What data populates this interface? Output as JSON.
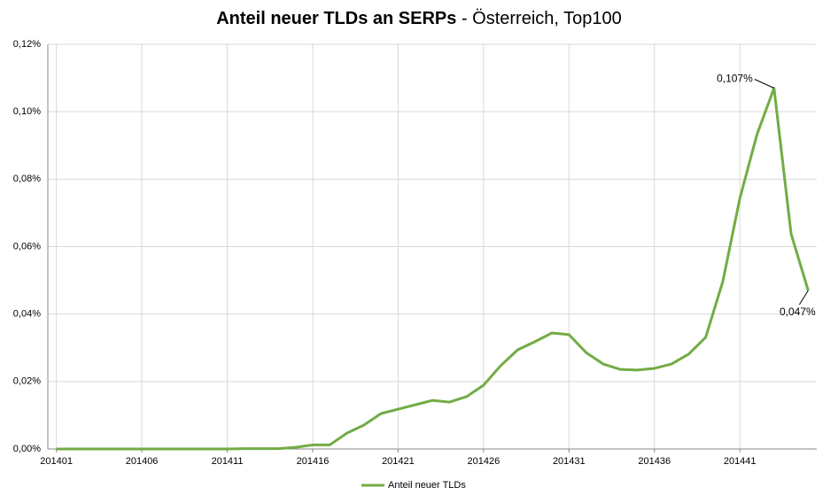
{
  "chart_data": {
    "type": "line",
    "title": "Anteil neuer TLDs an SERPs",
    "subtitle": "- Österreich, Top100",
    "categories": [
      "201401",
      null,
      null,
      null,
      null,
      "201406",
      null,
      null,
      null,
      null,
      "201411",
      null,
      null,
      null,
      null,
      "201416",
      null,
      null,
      null,
      null,
      "201421",
      null,
      null,
      null,
      null,
      "201426",
      null,
      null,
      null,
      null,
      "201431",
      null,
      null,
      null,
      null,
      "201436",
      null,
      null,
      null,
      null,
      "201441",
      null,
      null,
      null,
      null
    ],
    "series": [
      {
        "name": "Anteil neuer TLDs",
        "color": "#72ac45",
        "values": [
          0,
          0,
          0,
          0,
          0,
          0,
          0,
          0,
          0,
          0,
          0,
          0.0001,
          0.0001,
          0.0001,
          0.0005,
          0.0012,
          0.0012,
          0.0047,
          0.0071,
          0.0105,
          0.0118,
          0.0131,
          0.0144,
          0.0139,
          0.0155,
          0.0189,
          0.0247,
          0.0294,
          0.0318,
          0.0344,
          0.0339,
          0.0286,
          0.0252,
          0.0236,
          0.0234,
          0.0239,
          0.0252,
          0.0281,
          0.0331,
          0.0496,
          0.0743,
          0.0932,
          0.107,
          0.0638,
          0.047
        ],
        "value_labels": [
          null,
          null,
          null,
          null,
          null,
          null,
          null,
          null,
          null,
          null,
          null,
          null,
          null,
          null,
          null,
          null,
          null,
          null,
          null,
          null,
          null,
          null,
          null,
          null,
          null,
          null,
          null,
          null,
          null,
          null,
          null,
          null,
          null,
          null,
          null,
          null,
          null,
          null,
          null,
          null,
          null,
          null,
          "0,107%",
          null,
          "0,047%"
        ]
      }
    ],
    "ylim": [
      0,
      0.12
    ],
    "yticks": [
      {
        "value": 0,
        "label": "0,00%"
      },
      {
        "value": 0.02,
        "label": "0,02%"
      },
      {
        "value": 0.04,
        "label": "0,04%"
      },
      {
        "value": 0.06,
        "label": "0,06%"
      },
      {
        "value": 0.08,
        "label": "0,08%"
      },
      {
        "value": 0.1,
        "label": "0,10%"
      },
      {
        "value": 0.12,
        "label": "0,12%"
      }
    ],
    "grid": true,
    "legend": "bottom"
  }
}
